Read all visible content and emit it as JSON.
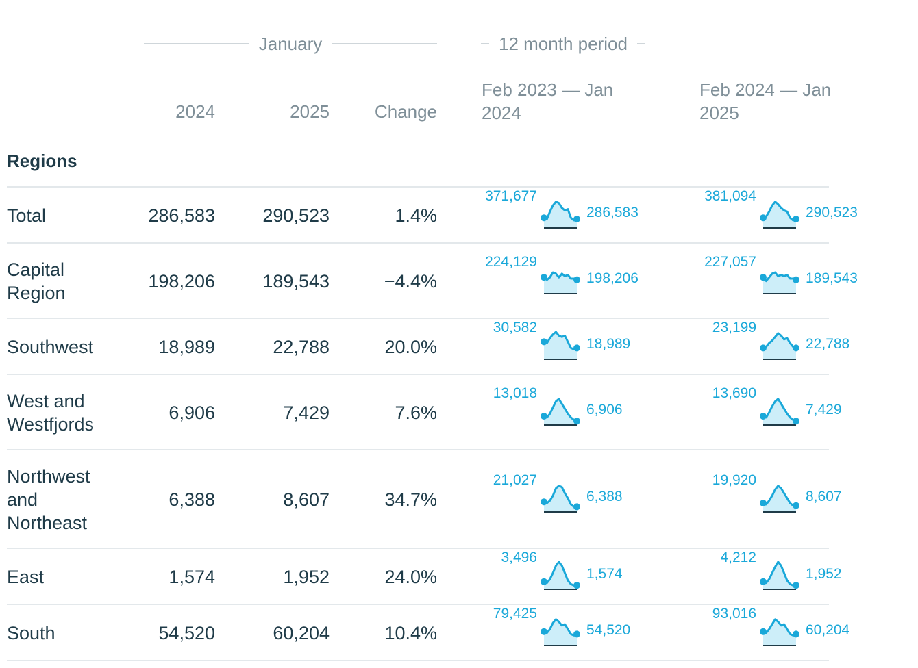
{
  "header": {
    "january_label": "January",
    "period_label": "12 month period",
    "col_2024": "2024",
    "col_2025": "2025",
    "col_change": "Change",
    "period1": [
      "Feb 2023 — Jan",
      "2024"
    ],
    "period2": [
      "Feb 2024 — Jan",
      "2025"
    ]
  },
  "section_title": "Regions",
  "rows": [
    {
      "name": "Total",
      "v2024": "286,583",
      "v2025": "290,523",
      "change": "1.4%",
      "p1_start": "371,677",
      "p1_end": "286,583",
      "p2_start": "381,094",
      "p2_end": "290,523",
      "p1_shape": [
        0.3,
        0.25,
        0.55,
        0.8,
        0.95,
        0.9,
        0.7,
        0.6,
        0.65,
        0.3,
        0.2,
        0.25
      ],
      "p2_shape": [
        0.3,
        0.35,
        0.55,
        0.8,
        0.95,
        0.85,
        0.7,
        0.6,
        0.55,
        0.3,
        0.2,
        0.25
      ]
    },
    {
      "name": "Capital Region",
      "v2024": "198,206",
      "v2025": "189,543",
      "change": "−4.4%",
      "p1_start": "224,129",
      "p1_end": "198,206",
      "p2_start": "227,057",
      "p2_end": "189,543",
      "p1_shape": [
        0.55,
        0.45,
        0.55,
        0.75,
        0.7,
        0.55,
        0.7,
        0.6,
        0.65,
        0.5,
        0.5,
        0.45
      ],
      "p2_shape": [
        0.55,
        0.4,
        0.55,
        0.7,
        0.75,
        0.6,
        0.65,
        0.6,
        0.65,
        0.5,
        0.5,
        0.45
      ]
    },
    {
      "name": "Southwest",
      "v2024": "18,989",
      "v2025": "22,788",
      "change": "20.0%",
      "p1_start": "30,582",
      "p1_end": "18,989",
      "p2_start": "23,199",
      "p2_end": "22,788",
      "p1_shape": [
        0.6,
        0.55,
        0.75,
        0.9,
        1.0,
        0.85,
        0.8,
        0.85,
        0.6,
        0.35,
        0.3,
        0.35
      ],
      "p2_shape": [
        0.35,
        0.4,
        0.55,
        0.65,
        0.8,
        0.95,
        0.85,
        0.7,
        0.75,
        0.55,
        0.4,
        0.35
      ]
    },
    {
      "name": "West and Westfjords",
      "v2024": "6,906",
      "v2025": "7,429",
      "change": "7.6%",
      "p1_start": "13,018",
      "p1_end": "6,906",
      "p2_start": "13,690",
      "p2_end": "7,429",
      "p1_shape": [
        0.25,
        0.2,
        0.35,
        0.6,
        0.85,
        0.95,
        0.75,
        0.55,
        0.35,
        0.2,
        0.1,
        0.05
      ],
      "p2_shape": [
        0.25,
        0.2,
        0.4,
        0.65,
        0.85,
        0.95,
        0.75,
        0.55,
        0.35,
        0.2,
        0.1,
        0.05
      ]
    },
    {
      "name": "Northwest and Northeast",
      "v2024": "6,388",
      "v2025": "8,607",
      "change": "34.7%",
      "p1_start": "21,027",
      "p1_end": "6,388",
      "p2_start": "19,920",
      "p2_end": "8,607",
      "p1_shape": [
        0.3,
        0.25,
        0.35,
        0.55,
        0.85,
        0.95,
        0.9,
        0.65,
        0.45,
        0.2,
        0.1,
        0.1
      ],
      "p2_shape": [
        0.25,
        0.2,
        0.35,
        0.55,
        0.8,
        0.95,
        0.85,
        0.65,
        0.45,
        0.25,
        0.15,
        0.15
      ]
    },
    {
      "name": "East",
      "v2024": "1,574",
      "v2025": "1,952",
      "change": "24.0%",
      "p1_start": "3,496",
      "p1_end": "1,574",
      "p2_start": "4,212",
      "p2_end": "1,952",
      "p1_shape": [
        0.2,
        0.15,
        0.3,
        0.55,
        0.85,
        1.0,
        0.85,
        0.55,
        0.25,
        0.1,
        0.05,
        0.05
      ],
      "p2_shape": [
        0.2,
        0.15,
        0.3,
        0.55,
        0.8,
        1.0,
        0.85,
        0.55,
        0.25,
        0.1,
        0.05,
        0.05
      ]
    },
    {
      "name": "South",
      "v2024": "54,520",
      "v2025": "60,204",
      "change": "10.4%",
      "p1_start": "79,425",
      "p1_end": "54,520",
      "p2_start": "93,016",
      "p2_end": "60,204",
      "p1_shape": [
        0.45,
        0.4,
        0.55,
        0.8,
        0.95,
        0.85,
        0.7,
        0.75,
        0.55,
        0.35,
        0.3,
        0.35
      ],
      "p2_shape": [
        0.45,
        0.4,
        0.55,
        0.75,
        0.95,
        0.85,
        0.7,
        0.75,
        0.55,
        0.35,
        0.3,
        0.35
      ]
    }
  ],
  "chart_data": {
    "type": "table",
    "title": "",
    "columns": [
      "Regions",
      "2024",
      "2025",
      "Change",
      "Feb 2023 — Jan 2024",
      "Feb 2024 — Jan 2025"
    ],
    "categories": [
      "Total",
      "Capital Region",
      "Southwest",
      "West and Westfjords",
      "Northwest and Northeast",
      "East",
      "South"
    ],
    "series": [
      {
        "name": "2024",
        "values": [
          286583,
          198206,
          18989,
          6906,
          6388,
          1574,
          54520
        ]
      },
      {
        "name": "2025",
        "values": [
          290523,
          189543,
          22788,
          7429,
          8607,
          1952,
          60204
        ]
      },
      {
        "name": "Change",
        "values": [
          1.4,
          -4.4,
          20.0,
          7.6,
          34.7,
          24.0,
          10.4
        ]
      }
    ],
    "sparkline_endpoints": {
      "Feb 2023 — Jan 2024": [
        [
          371677,
          286583
        ],
        [
          224129,
          198206
        ],
        [
          30582,
          18989
        ],
        [
          13018,
          6906
        ],
        [
          21027,
          6388
        ],
        [
          3496,
          1574
        ],
        [
          79425,
          54520
        ]
      ],
      "Feb 2024 — Jan 2025": [
        [
          381094,
          290523
        ],
        [
          227057,
          189543
        ],
        [
          23199,
          22788
        ],
        [
          13690,
          7429
        ],
        [
          19920,
          8607
        ],
        [
          4212,
          1952
        ],
        [
          93016,
          60204
        ]
      ]
    }
  },
  "colors": {
    "accent": "#1aa8d9",
    "accent_fill": "#cdeef9",
    "text": "#1f3b48",
    "muted": "#7f8f98",
    "divider": "#e3e8eb"
  }
}
